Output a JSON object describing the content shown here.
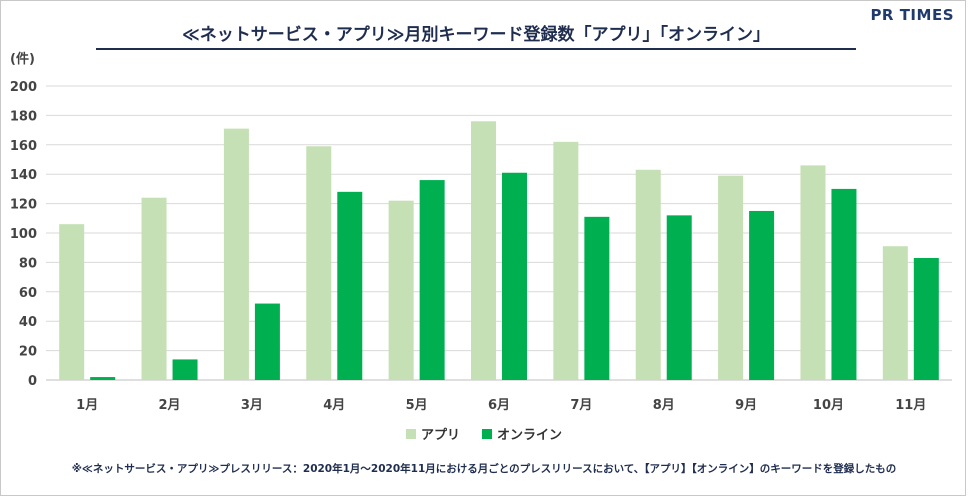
{
  "title": "≪ネットサービス・アプリ≫月別キーワード登録数「アプリ」「オンライン」",
  "logo": "PR TIMES",
  "footnote": "※≪ネットサービス・アプリ≫プレスリリース：2020年1月〜2020年11月における月ごとのプレスリリースにおいて、【アプリ】【オンライン】のキーワードを登録したもの",
  "colors": {
    "series1": "#c5e0b4",
    "series2": "#00b050",
    "grid": "#d9d9d9",
    "title": "#1f2d4e"
  },
  "chart_data": {
    "type": "bar",
    "title": "≪ネットサービス・アプリ≫月別キーワード登録数「アプリ」「オンライン」",
    "ylabel": "(件)",
    "xlabel": "",
    "categories": [
      "1月",
      "2月",
      "3月",
      "4月",
      "5月",
      "6月",
      "7月",
      "8月",
      "9月",
      "10月",
      "11月"
    ],
    "series": [
      {
        "name": "アプリ",
        "values": [
          106,
          124,
          171,
          159,
          122,
          176,
          162,
          143,
          139,
          146,
          91
        ]
      },
      {
        "name": "オンライン",
        "values": [
          2,
          14,
          52,
          128,
          136,
          141,
          111,
          112,
          115,
          130,
          83
        ]
      }
    ],
    "ylim": [
      0,
      200
    ],
    "yticks": [
      0,
      20,
      40,
      60,
      80,
      100,
      120,
      140,
      160,
      180,
      200
    ],
    "grid": true,
    "legend": "bottom"
  }
}
